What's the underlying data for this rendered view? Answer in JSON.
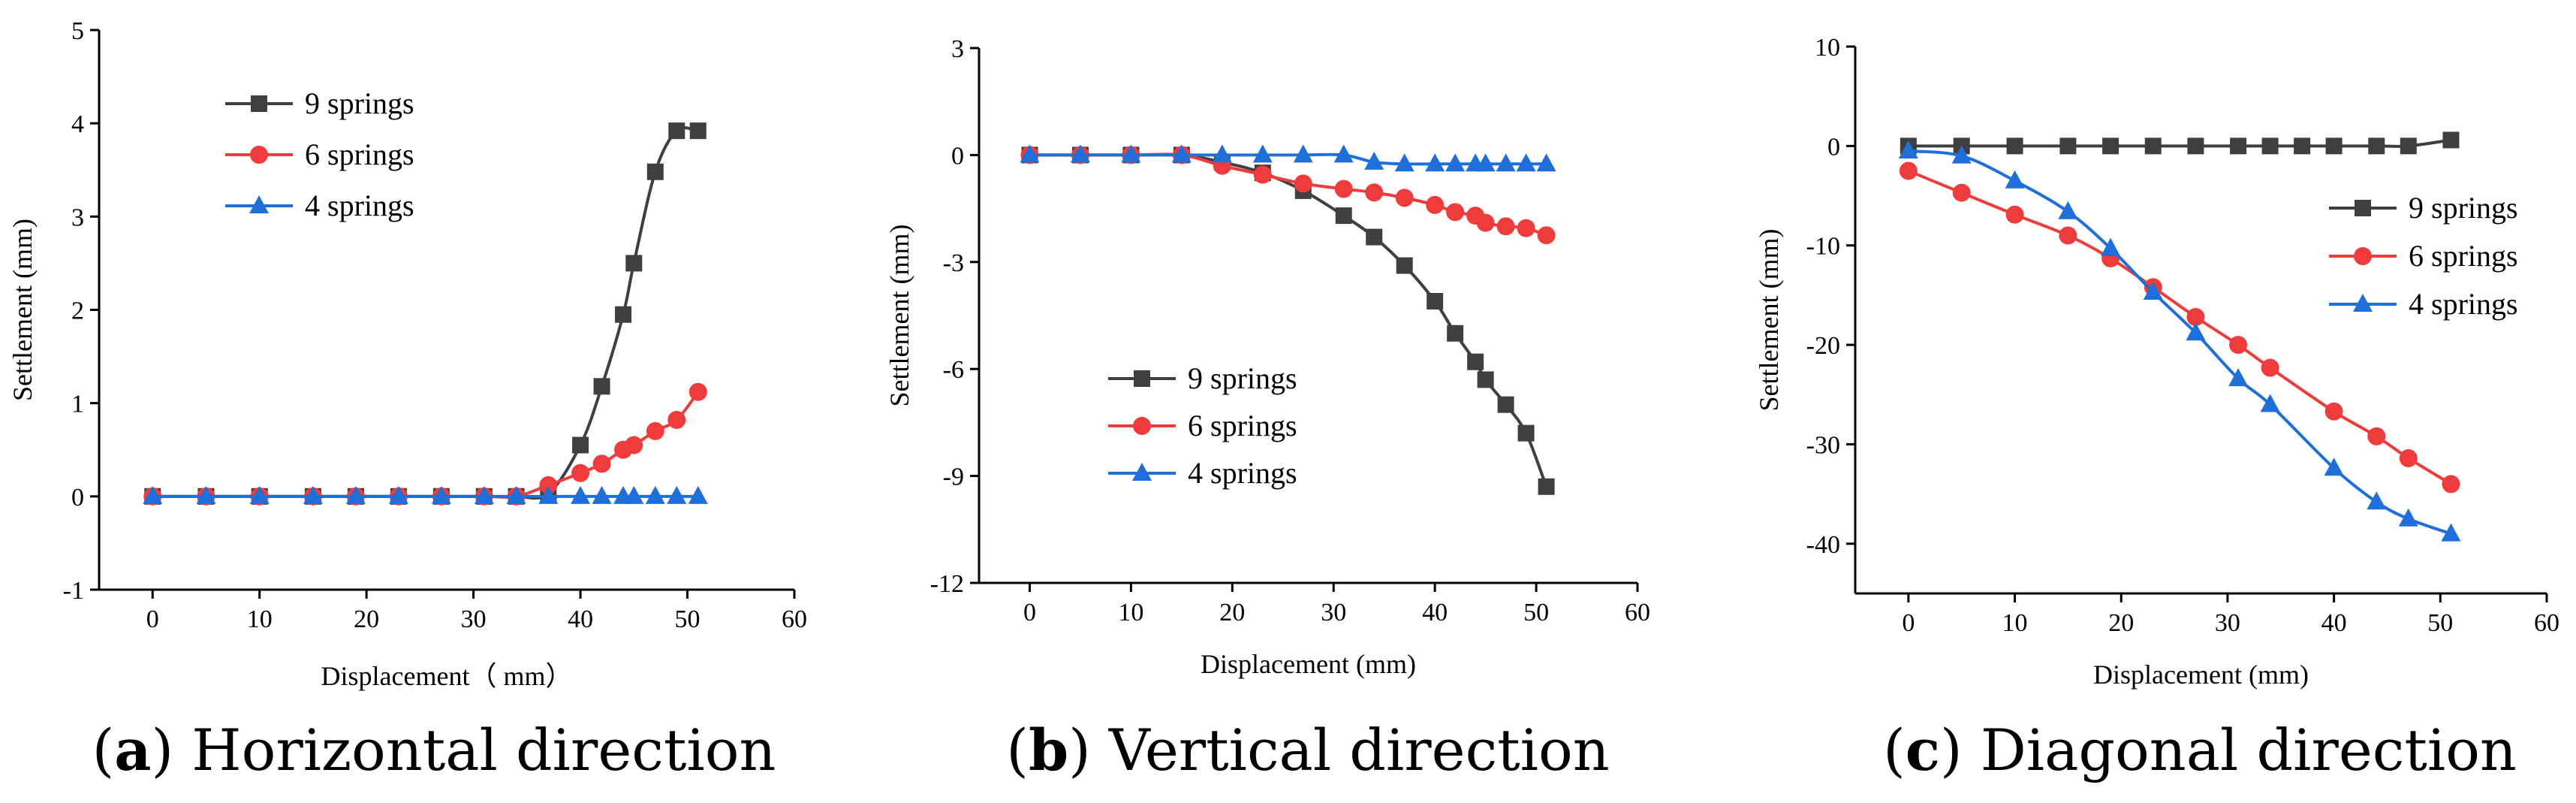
{
  "chart_data": [
    {
      "type": "line",
      "caption": {
        "open": "(",
        "letter": "a",
        "close": ")",
        "text": " Horizontal direction"
      },
      "xlabel": "Displacement（ mm）",
      "ylabel": "Settlement (mm)",
      "xlim": [
        -5,
        60
      ],
      "ylim": [
        -1,
        5
      ],
      "xticks": [
        0,
        10,
        20,
        30,
        40,
        50,
        60
      ],
      "yticks": [
        -1,
        0,
        1,
        2,
        3,
        4,
        5
      ],
      "legend_position": "top-left",
      "series": [
        {
          "name": "9 springs",
          "color": "#3f3f3f",
          "marker": "square",
          "x": [
            0,
            5,
            10,
            15,
            19,
            23,
            27,
            31,
            34,
            37,
            40,
            42,
            44,
            45,
            47,
            49,
            51
          ],
          "y": [
            0,
            0,
            0,
            0,
            0,
            0,
            0,
            0,
            0,
            0.03,
            0.55,
            1.18,
            1.95,
            2.5,
            3.48,
            3.92,
            3.92
          ]
        },
        {
          "name": "6 springs",
          "color": "#ee3b3b",
          "marker": "circle",
          "x": [
            0,
            5,
            10,
            15,
            19,
            23,
            27,
            31,
            34,
            37,
            40,
            42,
            44,
            45,
            47,
            49,
            51
          ],
          "y": [
            0,
            0,
            0,
            0,
            0,
            0,
            0,
            0,
            0,
            0.12,
            0.25,
            0.35,
            0.5,
            0.55,
            0.7,
            0.82,
            1.12
          ]
        },
        {
          "name": "4 springs",
          "color": "#1f6fdb",
          "marker": "triangle",
          "x": [
            0,
            5,
            10,
            15,
            19,
            23,
            27,
            31,
            34,
            37,
            40,
            42,
            44,
            45,
            47,
            49,
            51
          ],
          "y": [
            0,
            0,
            0,
            0,
            0,
            0,
            0,
            0,
            0,
            0,
            0,
            0,
            0,
            0,
            0,
            0,
            0
          ]
        }
      ]
    },
    {
      "type": "line",
      "caption": {
        "open": "(",
        "letter": "b",
        "close": ")",
        "text": " Vertical direction"
      },
      "xlabel": "Displacement (mm)",
      "ylabel": "Settlement (mm)",
      "xlim": [
        -5,
        60
      ],
      "ylim": [
        -12,
        3
      ],
      "xticks": [
        0,
        10,
        20,
        30,
        40,
        50,
        60
      ],
      "yticks": [
        -12,
        -9,
        -6,
        -3,
        0,
        3
      ],
      "legend_position": "center-left",
      "series": [
        {
          "name": "9 springs",
          "color": "#3f3f3f",
          "marker": "square",
          "x": [
            0,
            5,
            10,
            15,
            19,
            23,
            27,
            31,
            34,
            37,
            40,
            42,
            44,
            45,
            47,
            49,
            51
          ],
          "y": [
            0,
            0,
            0,
            0,
            -0.2,
            -0.5,
            -1.0,
            -1.7,
            -2.3,
            -3.1,
            -4.1,
            -5.0,
            -5.8,
            -6.3,
            -7.0,
            -7.8,
            -9.3
          ]
        },
        {
          "name": "6 springs",
          "color": "#ee3b3b",
          "marker": "circle",
          "x": [
            0,
            5,
            10,
            15,
            19,
            23,
            27,
            31,
            34,
            37,
            40,
            42,
            44,
            45,
            47,
            49,
            51
          ],
          "y": [
            0,
            0,
            0,
            0,
            -0.3,
            -0.55,
            -0.8,
            -0.95,
            -1.05,
            -1.2,
            -1.4,
            -1.6,
            -1.7,
            -1.9,
            -2.0,
            -2.05,
            -2.25
          ]
        },
        {
          "name": "4 springs",
          "color": "#1f6fdb",
          "marker": "triangle",
          "x": [
            0,
            5,
            10,
            15,
            19,
            23,
            27,
            31,
            34,
            37,
            40,
            42,
            44,
            45,
            47,
            49,
            51
          ],
          "y": [
            0,
            0,
            0,
            0,
            0,
            0,
            0,
            0,
            -0.2,
            -0.25,
            -0.25,
            -0.25,
            -0.25,
            -0.25,
            -0.25,
            -0.25,
            -0.25
          ]
        }
      ]
    },
    {
      "type": "line",
      "caption": {
        "open": "(",
        "letter": "c",
        "close": ")",
        "text": " Diagonal direction"
      },
      "xlabel": "Displacement (mm)",
      "ylabel": "Settlement (mm)",
      "xlim": [
        -5,
        60
      ],
      "ylim": [
        -45,
        10
      ],
      "xticks": [
        0,
        10,
        20,
        30,
        40,
        50,
        60
      ],
      "yticks": [
        -40,
        -30,
        -20,
        -10,
        0,
        10
      ],
      "legend_position": "right",
      "series": [
        {
          "name": "9 springs",
          "color": "#3f3f3f",
          "marker": "square",
          "x": [
            0,
            5,
            10,
            15,
            19,
            23,
            27,
            31,
            34,
            37,
            40,
            44,
            47,
            51
          ],
          "y": [
            0,
            0,
            0,
            0,
            0,
            0,
            0,
            0,
            0,
            0,
            0,
            0,
            0,
            0.6
          ]
        },
        {
          "name": "6 springs",
          "color": "#ee3b3b",
          "marker": "circle",
          "x": [
            0,
            5,
            10,
            15,
            19,
            23,
            27,
            31,
            34,
            40,
            44,
            47,
            51
          ],
          "y": [
            -2.5,
            -4.7,
            -6.9,
            -9.0,
            -11.3,
            -14.2,
            -17.2,
            -20.0,
            -22.3,
            -26.7,
            -29.2,
            -31.4,
            -34.0
          ]
        },
        {
          "name": "4 springs",
          "color": "#1f6fdb",
          "marker": "triangle",
          "x": [
            0,
            5,
            10,
            15,
            19,
            23,
            27,
            31,
            34,
            40,
            44,
            47,
            51
          ],
          "y": [
            -0.5,
            -1.0,
            -3.5,
            -6.6,
            -10.3,
            -14.7,
            -18.8,
            -23.4,
            -26.0,
            -32.4,
            -35.8,
            -37.5,
            -39.0
          ]
        }
      ]
    }
  ]
}
